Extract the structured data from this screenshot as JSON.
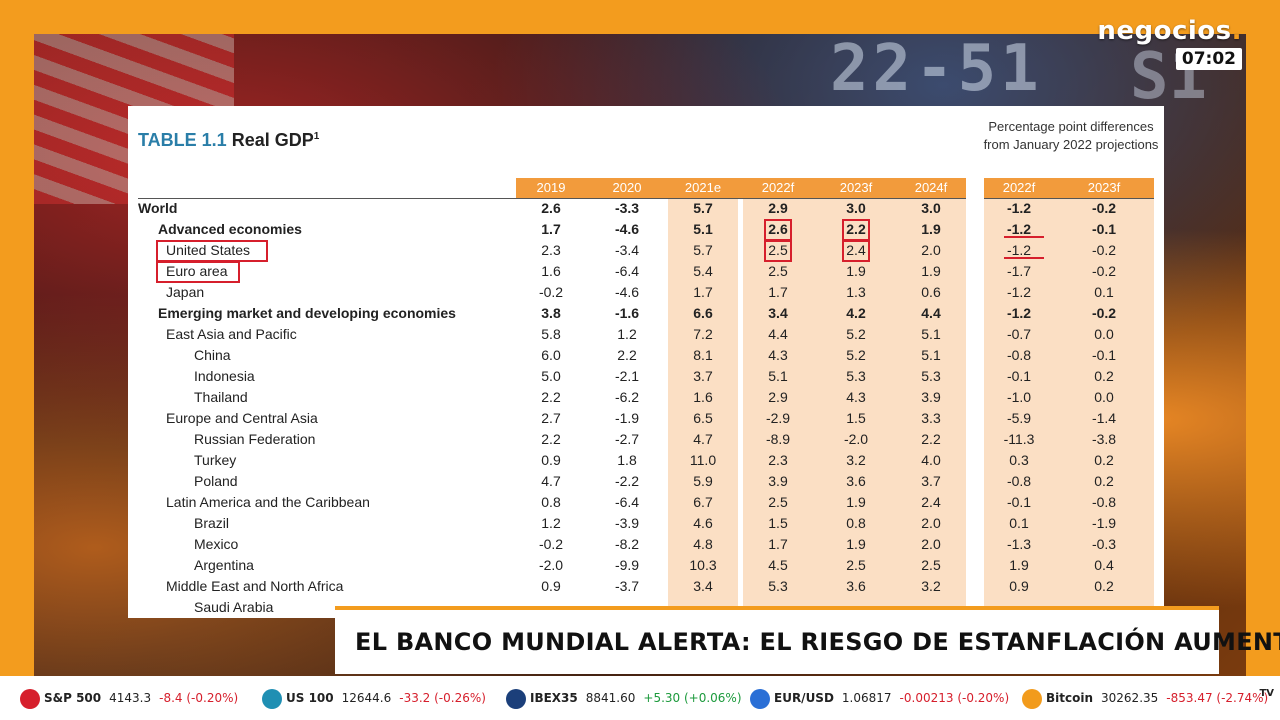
{
  "logo": "negocios.",
  "clock": "07:02",
  "background_digits": "22-51",
  "background_letters": "S1",
  "table": {
    "title_num": "TABLE 1.1",
    "title_text": "Real GDP",
    "title_sup": "1",
    "diff_note": "Percentage point differences from January 2022 projections",
    "columns": [
      "2019",
      "2020",
      "2021e",
      "2022f",
      "2023f",
      "2024f"
    ],
    "diff_columns": [
      "2022f",
      "2023f"
    ],
    "rows": [
      {
        "label": "World",
        "values": [
          "2.6",
          "-3.3",
          "5.7",
          "2.9",
          "3.0",
          "3.0"
        ],
        "diff": [
          "-1.2",
          "-0.2"
        ]
      },
      {
        "label": "Advanced economies",
        "values": [
          "1.7",
          "-4.6",
          "5.1",
          "2.6",
          "2.2",
          "1.9"
        ],
        "diff": [
          "-1.2",
          "-0.1"
        ]
      },
      {
        "label": "United States",
        "values": [
          "2.3",
          "-3.4",
          "5.7",
          "2.5",
          "2.4",
          "2.0"
        ],
        "diff": [
          "-1.2",
          "-0.2"
        ]
      },
      {
        "label": "Euro area",
        "values": [
          "1.6",
          "-6.4",
          "5.4",
          "2.5",
          "1.9",
          "1.9"
        ],
        "diff": [
          "-1.7",
          "-0.2"
        ]
      },
      {
        "label": "Japan",
        "values": [
          "-0.2",
          "-4.6",
          "1.7",
          "1.7",
          "1.3",
          "0.6"
        ],
        "diff": [
          "-1.2",
          "0.1"
        ]
      },
      {
        "label": "Emerging market and developing economies",
        "values": [
          "3.8",
          "-1.6",
          "6.6",
          "3.4",
          "4.2",
          "4.4"
        ],
        "diff": [
          "-1.2",
          "-0.2"
        ]
      },
      {
        "label": "East Asia and Pacific",
        "values": [
          "5.8",
          "1.2",
          "7.2",
          "4.4",
          "5.2",
          "5.1"
        ],
        "diff": [
          "-0.7",
          "0.0"
        ]
      },
      {
        "label": "China",
        "values": [
          "6.0",
          "2.2",
          "8.1",
          "4.3",
          "5.2",
          "5.1"
        ],
        "diff": [
          "-0.8",
          "-0.1"
        ]
      },
      {
        "label": "Indonesia",
        "values": [
          "5.0",
          "-2.1",
          "3.7",
          "5.1",
          "5.3",
          "5.3"
        ],
        "diff": [
          "-0.1",
          "0.2"
        ]
      },
      {
        "label": "Thailand",
        "values": [
          "2.2",
          "-6.2",
          "1.6",
          "2.9",
          "4.3",
          "3.9"
        ],
        "diff": [
          "-1.0",
          "0.0"
        ]
      },
      {
        "label": "Europe and Central Asia",
        "values": [
          "2.7",
          "-1.9",
          "6.5",
          "-2.9",
          "1.5",
          "3.3"
        ],
        "diff": [
          "-5.9",
          "-1.4"
        ]
      },
      {
        "label": "Russian Federation",
        "values": [
          "2.2",
          "-2.7",
          "4.7",
          "-8.9",
          "-2.0",
          "2.2"
        ],
        "diff": [
          "-11.3",
          "-3.8"
        ]
      },
      {
        "label": "Turkey",
        "values": [
          "0.9",
          "1.8",
          "11.0",
          "2.3",
          "3.2",
          "4.0"
        ],
        "diff": [
          "0.3",
          "0.2"
        ]
      },
      {
        "label": "Poland",
        "values": [
          "4.7",
          "-2.2",
          "5.9",
          "3.9",
          "3.6",
          "3.7"
        ],
        "diff": [
          "-0.8",
          "0.2"
        ]
      },
      {
        "label": "Latin America and the Caribbean",
        "values": [
          "0.8",
          "-6.4",
          "6.7",
          "2.5",
          "1.9",
          "2.4"
        ],
        "diff": [
          "-0.1",
          "-0.8"
        ]
      },
      {
        "label": "Brazil",
        "values": [
          "1.2",
          "-3.9",
          "4.6",
          "1.5",
          "0.8",
          "2.0"
        ],
        "diff": [
          "0.1",
          "-1.9"
        ]
      },
      {
        "label": "Mexico",
        "values": [
          "-0.2",
          "-8.2",
          "4.8",
          "1.7",
          "1.9",
          "2.0"
        ],
        "diff": [
          "-1.3",
          "-0.3"
        ]
      },
      {
        "label": "Argentina",
        "values": [
          "-2.0",
          "-9.9",
          "10.3",
          "4.5",
          "2.5",
          "2.5"
        ],
        "diff": [
          "1.9",
          "0.4"
        ]
      },
      {
        "label": "Middle East and North Africa",
        "values": [
          "0.9",
          "-3.7",
          "3.4",
          "5.3",
          "3.6",
          "3.2"
        ],
        "diff": [
          "0.9",
          "0.2"
        ]
      },
      {
        "label": "Saudi Arabia",
        "values": [
          "",
          "",
          "",
          "",
          "",
          ""
        ],
        "diff": [
          "",
          ""
        ]
      }
    ]
  },
  "headline": "EL BANCO MUNDIAL ALERTA: EL RIESGO DE ESTANFLACIÓN AUMENTA",
  "ticker": [
    {
      "name": "S&P 500",
      "price": "4143.3",
      "change": "-8.4 (-0.20%)",
      "color": "#d61f2c",
      "dir": "neg"
    },
    {
      "name": "US 100",
      "price": "12644.6",
      "change": "-33.2 (-0.26%)",
      "color": "#1f8fb3",
      "dir": "neg"
    },
    {
      "name": "IBEX35",
      "price": "8841.60",
      "change": "+5.30 (+0.06%)",
      "color": "#1b3f7a",
      "dir": "pos"
    },
    {
      "name": "EUR/USD",
      "price": "1.06817",
      "change": "-0.00213 (-0.20%)",
      "color": "#2a6fd6",
      "dir": "neg"
    },
    {
      "name": "Bitcoin",
      "price": "30262.35",
      "change": "-853.47 (-2.74%)",
      "color": "#f29b1c",
      "dir": "neg"
    }
  ],
  "ticker_brand": "TV"
}
